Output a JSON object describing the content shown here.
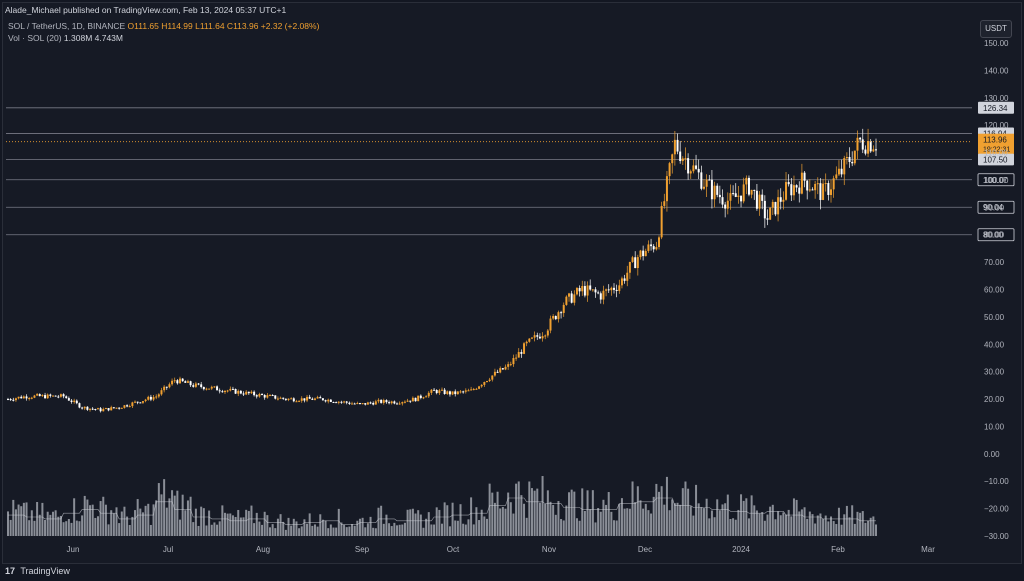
{
  "header": {
    "published": "Alade_Michael published on TradingView.com, Feb 13, 2024 05:37 UTC+1"
  },
  "legend": {
    "symbol": "SOL / TetherUS, 1D, BINANCE",
    "ohlc": "O111.65  H114.99  L111.64  C113.96  +2.32 (+2.08%)",
    "vol_label": "Vol · SOL (20)",
    "vol_values": "1.308M  4.743M"
  },
  "currency": "USDT",
  "footer": {
    "brand": "TradingView",
    "logo": "tradingview-logo-icon"
  },
  "colors": {
    "up": "#f0a030",
    "down": "#ffffff",
    "grid_level": "#787b86",
    "price_tag": "#f0a030",
    "volume": "#b2b5be"
  },
  "chart_data": {
    "type": "candlestick",
    "ylim": [
      -30,
      150
    ],
    "y_ticks": [
      "150.00",
      "140.00",
      "130.00",
      "120.00",
      "110.00",
      "100.00",
      "90.00",
      "80.00",
      "70.00",
      "60.00",
      "50.00",
      "40.00",
      "30.00",
      "20.00",
      "10.00",
      "0.00",
      "−10.00",
      "−20.00",
      "−30.00"
    ],
    "x_ticks": [
      "Jun",
      "Jul",
      "Aug",
      "Sep",
      "Oct",
      "Nov",
      "Dec",
      "2024",
      "Feb",
      "Mar"
    ],
    "horizontal_levels": [
      "126.34",
      "116.94",
      "107.50",
      "100.07",
      "90.04",
      "80.00"
    ],
    "current_price": {
      "value": "113.96",
      "countdown": "19:22:31"
    },
    "closes_weekly": [
      20,
      21,
      21,
      21,
      17,
      16,
      17,
      19,
      21,
      27,
      25,
      24,
      23,
      22,
      21,
      20,
      20,
      20,
      19,
      18,
      19,
      19,
      20,
      23,
      22,
      23,
      28,
      32,
      40,
      45,
      55,
      60,
      58,
      62,
      72,
      77,
      113,
      104,
      96,
      92,
      98,
      86,
      96,
      100,
      95,
      103,
      114
    ],
    "volume_weekly": [
      0.55,
      0.5,
      0.45,
      0.6,
      0.7,
      0.6,
      0.45,
      0.55,
      0.9,
      0.7,
      0.5,
      0.45,
      0.4,
      0.45,
      0.35,
      0.3,
      0.35,
      0.4,
      0.3,
      0.35,
      0.45,
      0.4,
      0.4,
      0.5,
      0.55,
      0.6,
      0.8,
      1.0,
      0.9,
      0.85,
      0.75,
      0.7,
      0.7,
      0.85,
      0.9,
      1.0,
      0.8,
      0.75,
      0.7,
      0.65,
      0.6,
      0.65,
      0.55,
      0.5,
      0.45,
      0.45,
      0.4
    ]
  }
}
